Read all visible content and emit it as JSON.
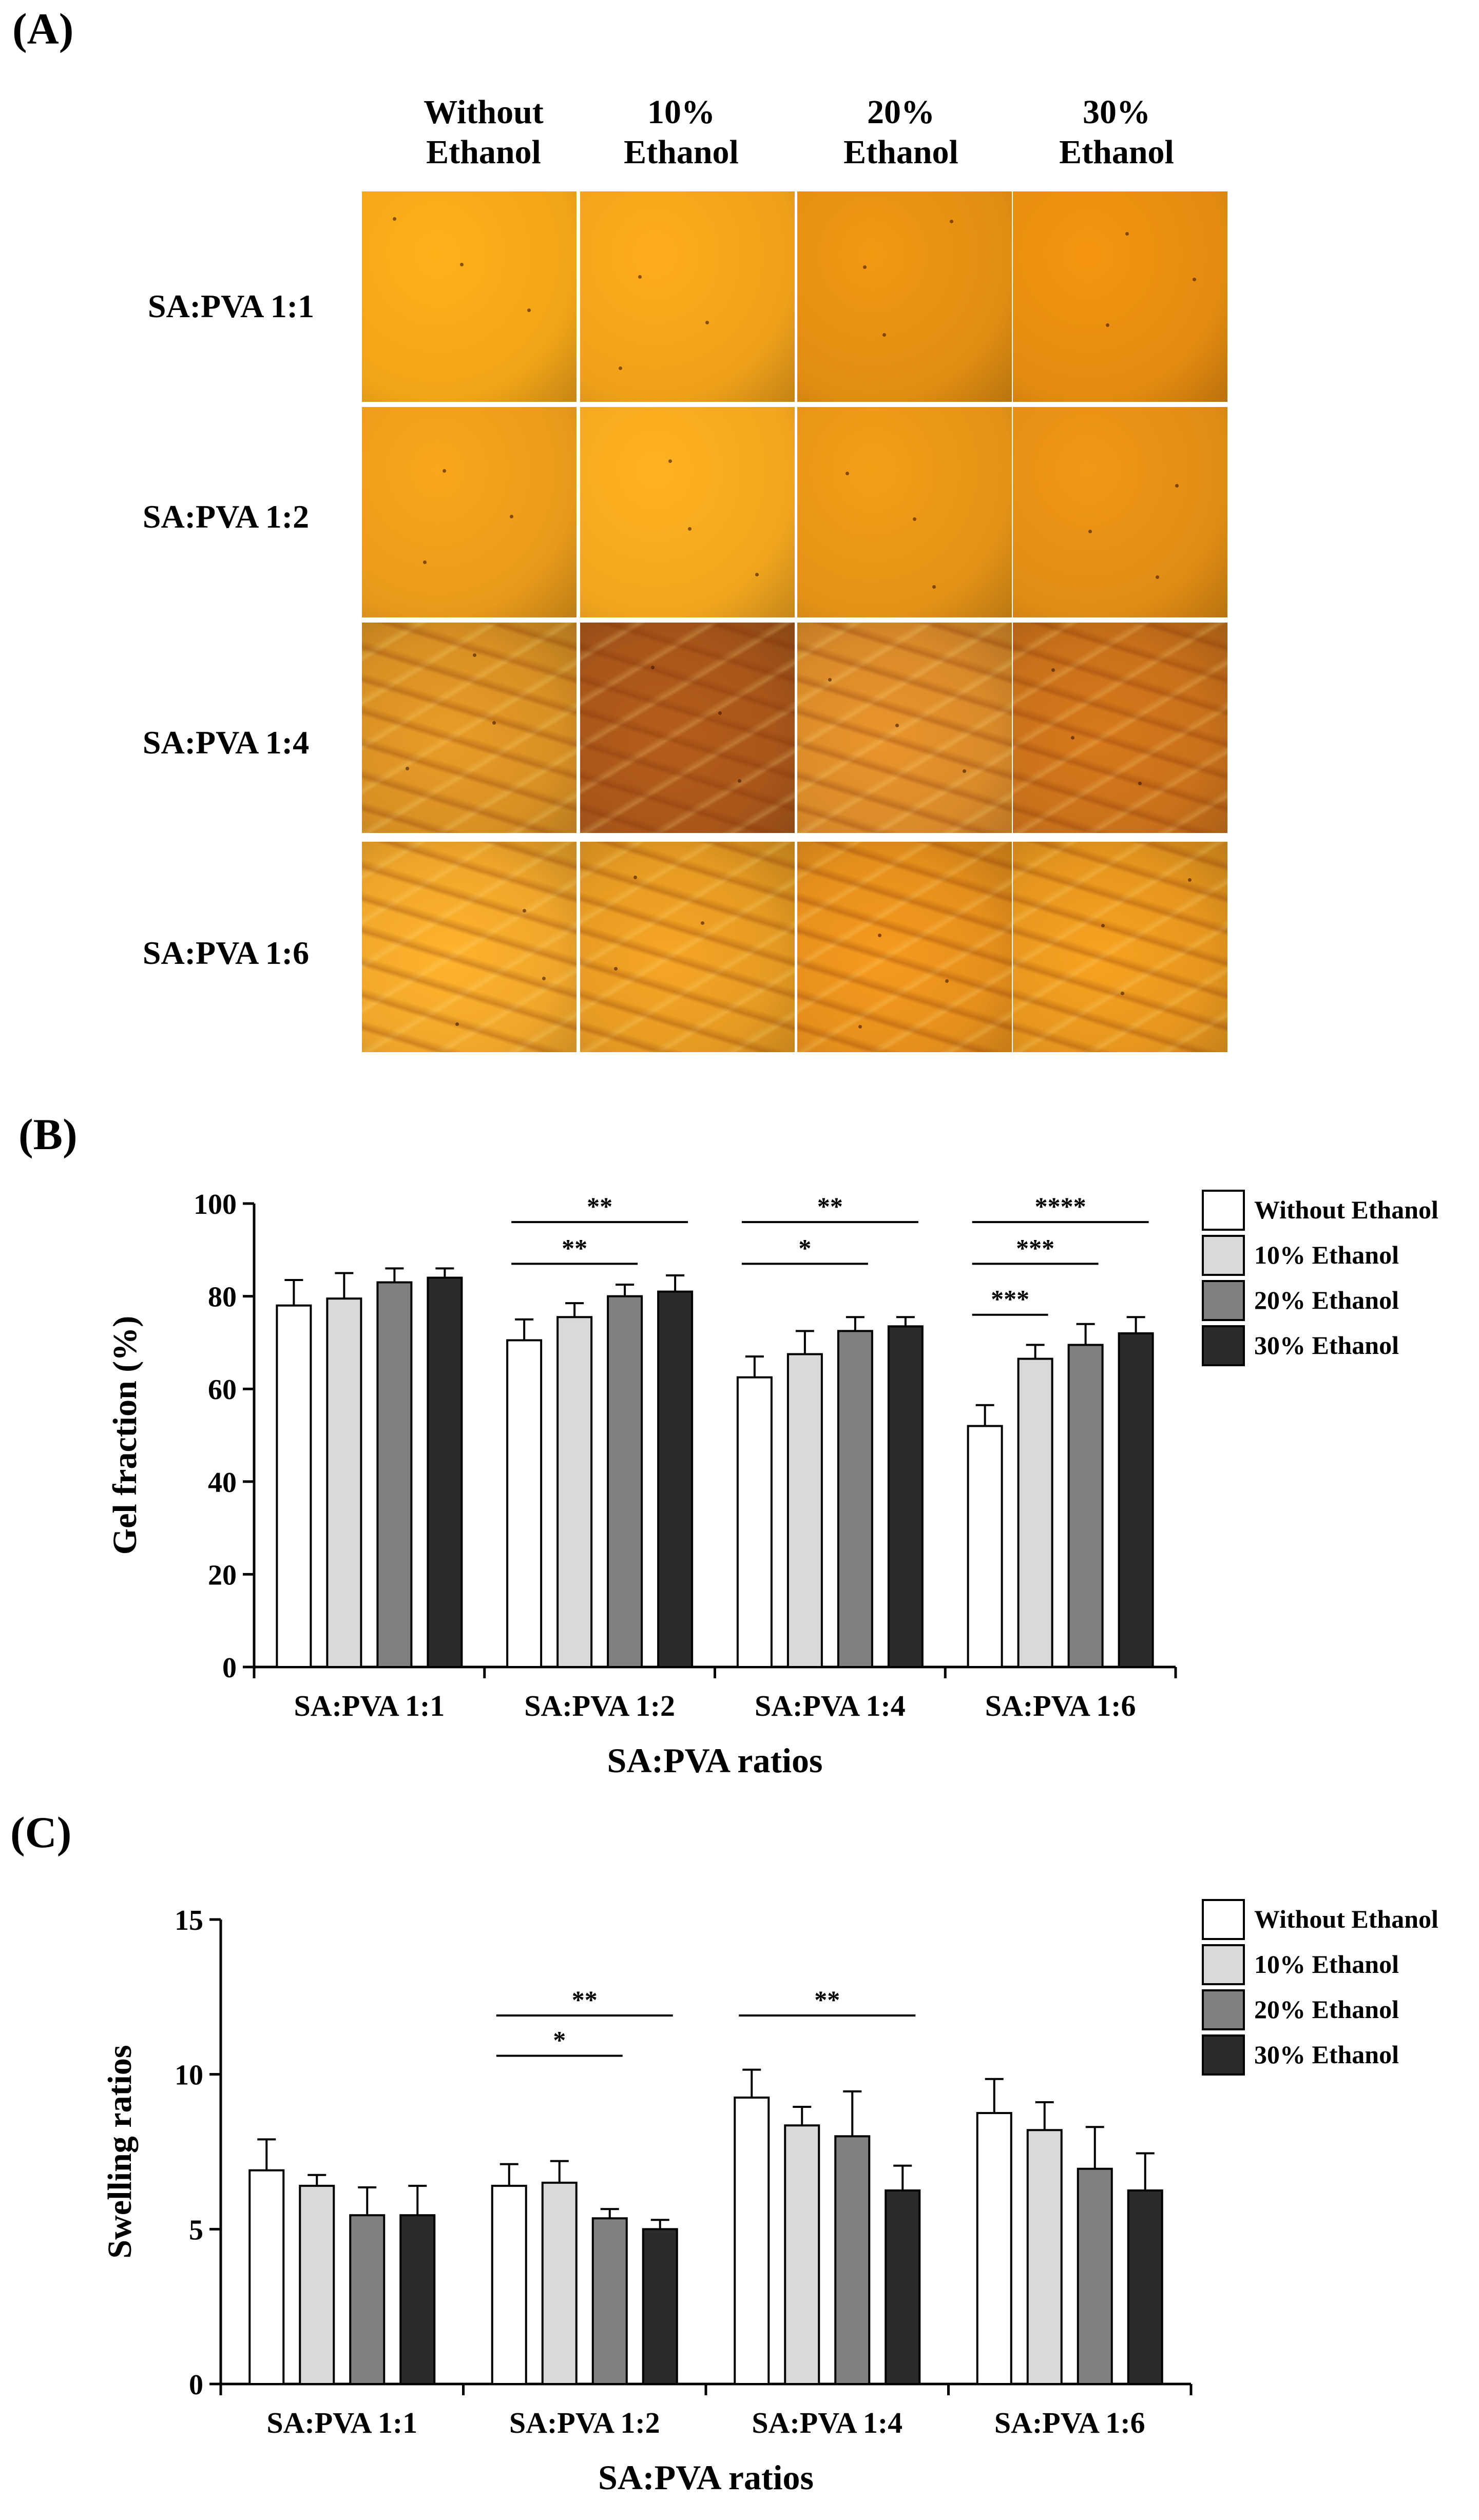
{
  "panel_labels": {
    "a": "(A)",
    "b": "(B)",
    "c": "(C)"
  },
  "photo_grid": {
    "columns": [
      {
        "line1": "Without",
        "line2": "Ethanol"
      },
      {
        "line1": "10%",
        "line2": "Ethanol"
      },
      {
        "line1": "20%",
        "line2": "Ethanol"
      },
      {
        "line1": "30%",
        "line2": "Ethanol"
      }
    ],
    "rows": [
      "SA:PVA 1:1",
      "SA:PVA 1:2",
      "SA:PVA 1:4",
      "SA:PVA 1:6"
    ],
    "row_appearance": [
      "flat",
      "flat",
      "crumpled",
      "crumpled"
    ],
    "tint_colors": [
      [
        "#f0a418",
        "#eea01a",
        "#e08d12",
        "#e38a10"
      ],
      [
        "#e79a1a",
        "#f0a51e",
        "#e39216",
        "#e08c14"
      ],
      [
        "#d89024",
        "#a8561a",
        "#d98a2a",
        "#c8701a"
      ],
      [
        "#f0a62a",
        "#e59a22",
        "#e58f1c",
        "#e6961e"
      ]
    ]
  },
  "chart_data": [
    {
      "type": "bar",
      "panel": "(B)",
      "categories": [
        "SA:PVA 1:1",
        "SA:PVA 1:2",
        "SA:PVA 1:4",
        "SA:PVA 1:6"
      ],
      "series": [
        {
          "name": "Without Ethanol",
          "color": "#ffffff",
          "values": [
            78,
            70.5,
            62.5,
            52
          ],
          "errors": [
            5.5,
            4.5,
            4.5,
            4.5
          ]
        },
        {
          "name": "10% Ethanol",
          "color": "#d9d9d9",
          "values": [
            79.5,
            75.5,
            67.5,
            66.5
          ],
          "errors": [
            5.5,
            3,
            5,
            3
          ]
        },
        {
          "name": "20% Ethanol",
          "color": "#808080",
          "values": [
            83,
            80,
            72.5,
            69.5
          ],
          "errors": [
            3,
            2.5,
            3,
            4.5
          ]
        },
        {
          "name": "30% Ethanol",
          "color": "#2b2b2b",
          "values": [
            84,
            81,
            73.5,
            72
          ],
          "errors": [
            2,
            3.5,
            2,
            3.5
          ]
        }
      ],
      "ylabel": "Gel fraction (%)",
      "xlabel": "SA:PVA ratios",
      "ylim": [
        0,
        100
      ],
      "yticks": [
        0,
        20,
        40,
        60,
        80,
        100
      ],
      "legend_position": "top-right",
      "significance": [
        {
          "category": 1,
          "from_series": 0,
          "to_series": 3,
          "label": "**",
          "level": 96
        },
        {
          "category": 1,
          "from_series": 0,
          "to_series": 2,
          "label": "**",
          "level": 87
        },
        {
          "category": 2,
          "from_series": 0,
          "to_series": 3,
          "label": "**",
          "level": 96
        },
        {
          "category": 2,
          "from_series": 0,
          "to_series": 2,
          "label": "*",
          "level": 87
        },
        {
          "category": 3,
          "from_series": 0,
          "to_series": 3,
          "label": "****",
          "level": 96
        },
        {
          "category": 3,
          "from_series": 0,
          "to_series": 2,
          "label": "***",
          "level": 87
        },
        {
          "category": 3,
          "from_series": 0,
          "to_series": 1,
          "label": "***",
          "level": 76
        }
      ]
    },
    {
      "type": "bar",
      "panel": "(C)",
      "categories": [
        "SA:PVA 1:1",
        "SA:PVA 1:2",
        "SA:PVA 1:4",
        "SA:PVA 1:6"
      ],
      "series": [
        {
          "name": "Without Ethanol",
          "color": "#ffffff",
          "values": [
            6.9,
            6.4,
            9.25,
            8.75
          ],
          "errors": [
            1.0,
            0.7,
            0.9,
            1.1
          ]
        },
        {
          "name": "10% Ethanol",
          "color": "#d9d9d9",
          "values": [
            6.4,
            6.5,
            8.35,
            8.2
          ],
          "errors": [
            0.35,
            0.7,
            0.6,
            0.9
          ]
        },
        {
          "name": "20% Ethanol",
          "color": "#808080",
          "values": [
            5.45,
            5.35,
            8.0,
            6.95
          ],
          "errors": [
            0.9,
            0.3,
            1.45,
            1.35
          ]
        },
        {
          "name": "30% Ethanol",
          "color": "#2b2b2b",
          "values": [
            5.45,
            5.0,
            6.25,
            6.25
          ],
          "errors": [
            0.95,
            0.3,
            0.8,
            1.2
          ]
        }
      ],
      "ylabel": "Swelling ratios",
      "xlabel": "SA:PVA ratios",
      "ylim": [
        0,
        15
      ],
      "yticks": [
        0,
        5,
        10,
        15
      ],
      "legend_position": "top-right",
      "significance": [
        {
          "category": 1,
          "from_series": 0,
          "to_series": 3,
          "label": "**",
          "level": 11.9
        },
        {
          "category": 1,
          "from_series": 0,
          "to_series": 2,
          "label": "*",
          "level": 10.6
        },
        {
          "category": 2,
          "from_series": 0,
          "to_series": 3,
          "label": "**",
          "level": 11.9
        }
      ]
    }
  ]
}
